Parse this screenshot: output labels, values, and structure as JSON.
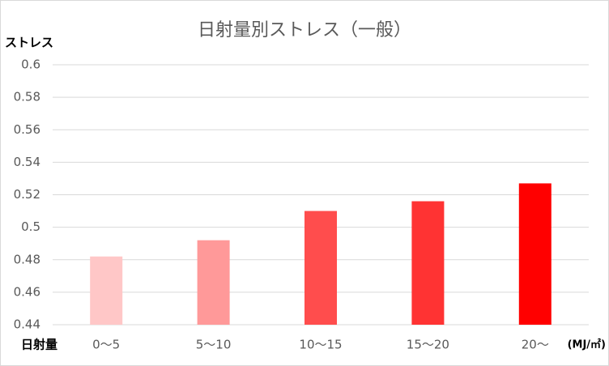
{
  "chart_data": {
    "type": "bar",
    "title": "日射量別ストレス（一般）",
    "y_axis_label": "ストレス",
    "x_axis_label": "日射量",
    "x_unit_label": "(MJ/㎡)",
    "categories": [
      "0～5",
      "5～10",
      "10～15",
      "15～20",
      "20～"
    ],
    "values": [
      0.482,
      0.492,
      0.51,
      0.516,
      0.527
    ],
    "colors": [
      "#ffc7c7",
      "#ff9999",
      "#ff4d4d",
      "#ff3333",
      "#ff0000"
    ],
    "ylim": [
      0.44,
      0.6
    ],
    "yticks": [
      0.44,
      0.46,
      0.48,
      0.5,
      0.52,
      0.54,
      0.56,
      0.58,
      0.6
    ],
    "grid": true
  }
}
